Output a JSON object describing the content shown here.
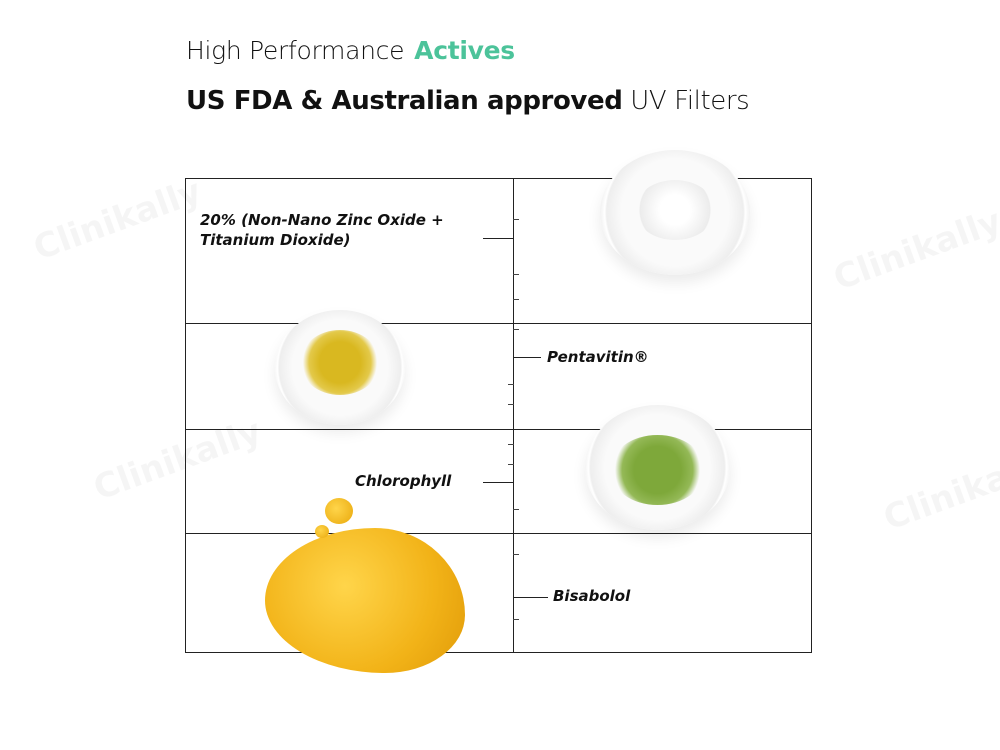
{
  "header": {
    "line1_prefix": "High Performance",
    "line1_accent": "Actives",
    "line2_bold": "US FDA & Australian approved",
    "line2_light": "UV Filters"
  },
  "colors": {
    "accent": "#4cc39a",
    "grid_line": "#222222",
    "turmeric": "#d9b820",
    "chlorophyll": "#7ea83a",
    "oil": "#f2b318"
  },
  "ingredients": [
    {
      "label": "20% (Non-Nano Zinc Oxide + Titanium Dioxide)",
      "line1": "20% (Non-Nano Zinc Oxide +",
      "line2": "Titanium Dioxide)"
    },
    {
      "label": "Pentavitin®"
    },
    {
      "label": "Chlorophyll"
    },
    {
      "label": "Bisabolol"
    }
  ],
  "watermark": "Clinikally"
}
